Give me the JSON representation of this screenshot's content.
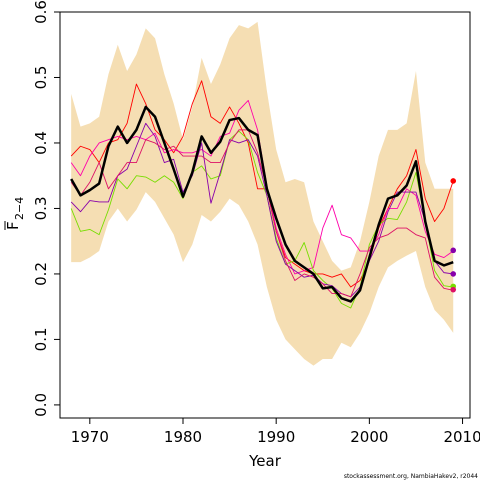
{
  "chart_data": {
    "type": "line",
    "xlabel": "Year",
    "ylabel_main": "F",
    "ylabel_sub": "2−4",
    "credit": "stockassessment.org, NambiaHakev2, r2044",
    "xlim": [
      1966.8,
      2010.8
    ],
    "ylim": [
      -0.02,
      0.6
    ],
    "xticks": [
      1970,
      1980,
      1990,
      2000,
      2010
    ],
    "yticks": [
      0.0,
      0.1,
      0.2,
      0.3,
      0.4,
      0.5,
      0.6
    ],
    "x": [
      1968,
      1969,
      1970,
      1971,
      1972,
      1973,
      1974,
      1975,
      1976,
      1977,
      1978,
      1979,
      1980,
      1981,
      1982,
      1983,
      1984,
      1985,
      1986,
      1987,
      1988,
      1989,
      1990,
      1991,
      1992,
      1993,
      1994,
      1995,
      1996,
      1997,
      1998,
      1999,
      2000,
      2001,
      2002,
      2003,
      2004,
      2005,
      2006,
      2007,
      2008,
      2009
    ],
    "band": {
      "color": "#f5deb3",
      "upper": [
        0.475,
        0.425,
        0.43,
        0.44,
        0.505,
        0.55,
        0.51,
        0.535,
        0.575,
        0.56,
        0.505,
        0.46,
        0.405,
        0.455,
        0.53,
        0.49,
        0.52,
        0.56,
        0.58,
        0.575,
        0.585,
        0.48,
        0.39,
        0.34,
        0.345,
        0.34,
        0.28,
        0.25,
        0.22,
        0.205,
        0.21,
        0.25,
        0.31,
        0.38,
        0.42,
        0.42,
        0.43,
        0.51,
        0.37,
        0.33,
        0.33,
        0.33
      ],
      "lower": [
        0.218,
        0.218,
        0.225,
        0.235,
        0.28,
        0.3,
        0.28,
        0.298,
        0.325,
        0.31,
        0.285,
        0.26,
        0.218,
        0.245,
        0.29,
        0.28,
        0.295,
        0.315,
        0.305,
        0.28,
        0.245,
        0.18,
        0.13,
        0.1,
        0.085,
        0.07,
        0.06,
        0.07,
        0.07,
        0.095,
        0.088,
        0.11,
        0.14,
        0.18,
        0.21,
        0.22,
        0.228,
        0.235,
        0.18,
        0.145,
        0.13,
        0.11
      ]
    },
    "series": [
      {
        "color": "#000000",
        "width": 2.5,
        "values": [
          0.345,
          0.32,
          0.328,
          0.338,
          0.395,
          0.425,
          0.4,
          0.42,
          0.455,
          0.44,
          0.4,
          0.36,
          0.318,
          0.355,
          0.41,
          0.385,
          0.402,
          0.435,
          0.438,
          0.42,
          0.412,
          0.33,
          0.285,
          0.245,
          0.22,
          0.21,
          0.2,
          0.178,
          0.18,
          0.163,
          0.158,
          0.175,
          0.225,
          0.275,
          0.315,
          0.32,
          0.335,
          0.372,
          0.28,
          0.22,
          0.213,
          0.218
        ]
      },
      {
        "color": "#ff0000",
        "width": 0.9,
        "values": [
          0.38,
          0.395,
          0.39,
          0.37,
          0.4,
          0.405,
          0.43,
          0.49,
          0.46,
          0.42,
          0.405,
          0.385,
          0.41,
          0.46,
          0.495,
          0.44,
          0.43,
          0.455,
          0.43,
          0.4,
          0.33,
          0.33,
          0.265,
          0.225,
          0.215,
          0.205,
          0.2,
          0.2,
          0.195,
          0.2,
          0.18,
          0.19,
          0.22,
          0.27,
          0.3,
          0.33,
          0.35,
          0.39,
          0.315,
          0.28,
          0.3,
          0.342
        ]
      },
      {
        "color": "#ff00aa",
        "width": 0.9,
        "values": [
          0.37,
          0.35,
          0.38,
          0.4,
          0.405,
          0.41,
          0.405,
          0.41,
          0.405,
          0.415,
          0.385,
          0.39,
          0.385,
          0.385,
          0.39,
          0.38,
          0.41,
          0.415,
          0.45,
          0.465,
          0.42,
          0.335,
          0.27,
          0.23,
          0.2,
          0.205,
          0.21,
          0.27,
          0.305,
          0.26,
          0.255,
          0.235,
          0.235,
          0.26,
          0.3,
          0.3,
          0.33,
          0.32,
          0.265,
          0.23,
          0.225,
          0.235
        ]
      },
      {
        "color": "#77dd00",
        "width": 0.9,
        "values": [
          0.3,
          0.265,
          0.268,
          0.26,
          0.298,
          0.345,
          0.33,
          0.35,
          0.348,
          0.34,
          0.35,
          0.34,
          0.315,
          0.355,
          0.365,
          0.345,
          0.35,
          0.405,
          0.418,
          0.405,
          0.355,
          0.32,
          0.255,
          0.215,
          0.22,
          0.248,
          0.205,
          0.19,
          0.178,
          0.155,
          0.148,
          0.18,
          0.245,
          0.275,
          0.285,
          0.283,
          0.31,
          0.355,
          0.28,
          0.205,
          0.182,
          0.18
        ]
      },
      {
        "color": "#8800aa",
        "width": 0.9,
        "values": [
          0.31,
          0.295,
          0.312,
          0.31,
          0.31,
          0.35,
          0.36,
          0.395,
          0.43,
          0.41,
          0.37,
          0.375,
          0.325,
          0.35,
          0.4,
          0.308,
          0.355,
          0.405,
          0.4,
          0.405,
          0.38,
          0.32,
          0.25,
          0.215,
          0.205,
          0.195,
          0.198,
          0.185,
          0.182,
          0.17,
          0.165,
          0.18,
          0.22,
          0.25,
          0.295,
          0.325,
          0.325,
          0.325,
          0.28,
          0.22,
          0.202,
          0.2
        ]
      },
      {
        "color": "#dd1166",
        "width": 0.9,
        "values": [
          0.34,
          0.32,
          0.34,
          0.37,
          0.33,
          0.35,
          0.37,
          0.37,
          0.405,
          0.4,
          0.39,
          0.395,
          0.38,
          0.38,
          0.38,
          0.37,
          0.37,
          0.4,
          0.42,
          0.42,
          0.385,
          0.33,
          0.265,
          0.22,
          0.19,
          0.2,
          0.195,
          0.185,
          0.17,
          0.17,
          0.165,
          0.2,
          0.24,
          0.255,
          0.26,
          0.27,
          0.27,
          0.26,
          0.255,
          0.195,
          0.178,
          0.175
        ]
      }
    ],
    "endpoints": [
      {
        "color": "#ff0000",
        "x": 2009,
        "y": 0.342
      },
      {
        "color": "#8800aa",
        "x": 2009,
        "y": 0.236
      },
      {
        "color": "#8800aa",
        "x": 2009,
        "y": 0.2
      },
      {
        "color": "#77dd00",
        "x": 2009,
        "y": 0.181
      },
      {
        "color": "#dd1166",
        "x": 2009,
        "y": 0.176
      }
    ]
  }
}
